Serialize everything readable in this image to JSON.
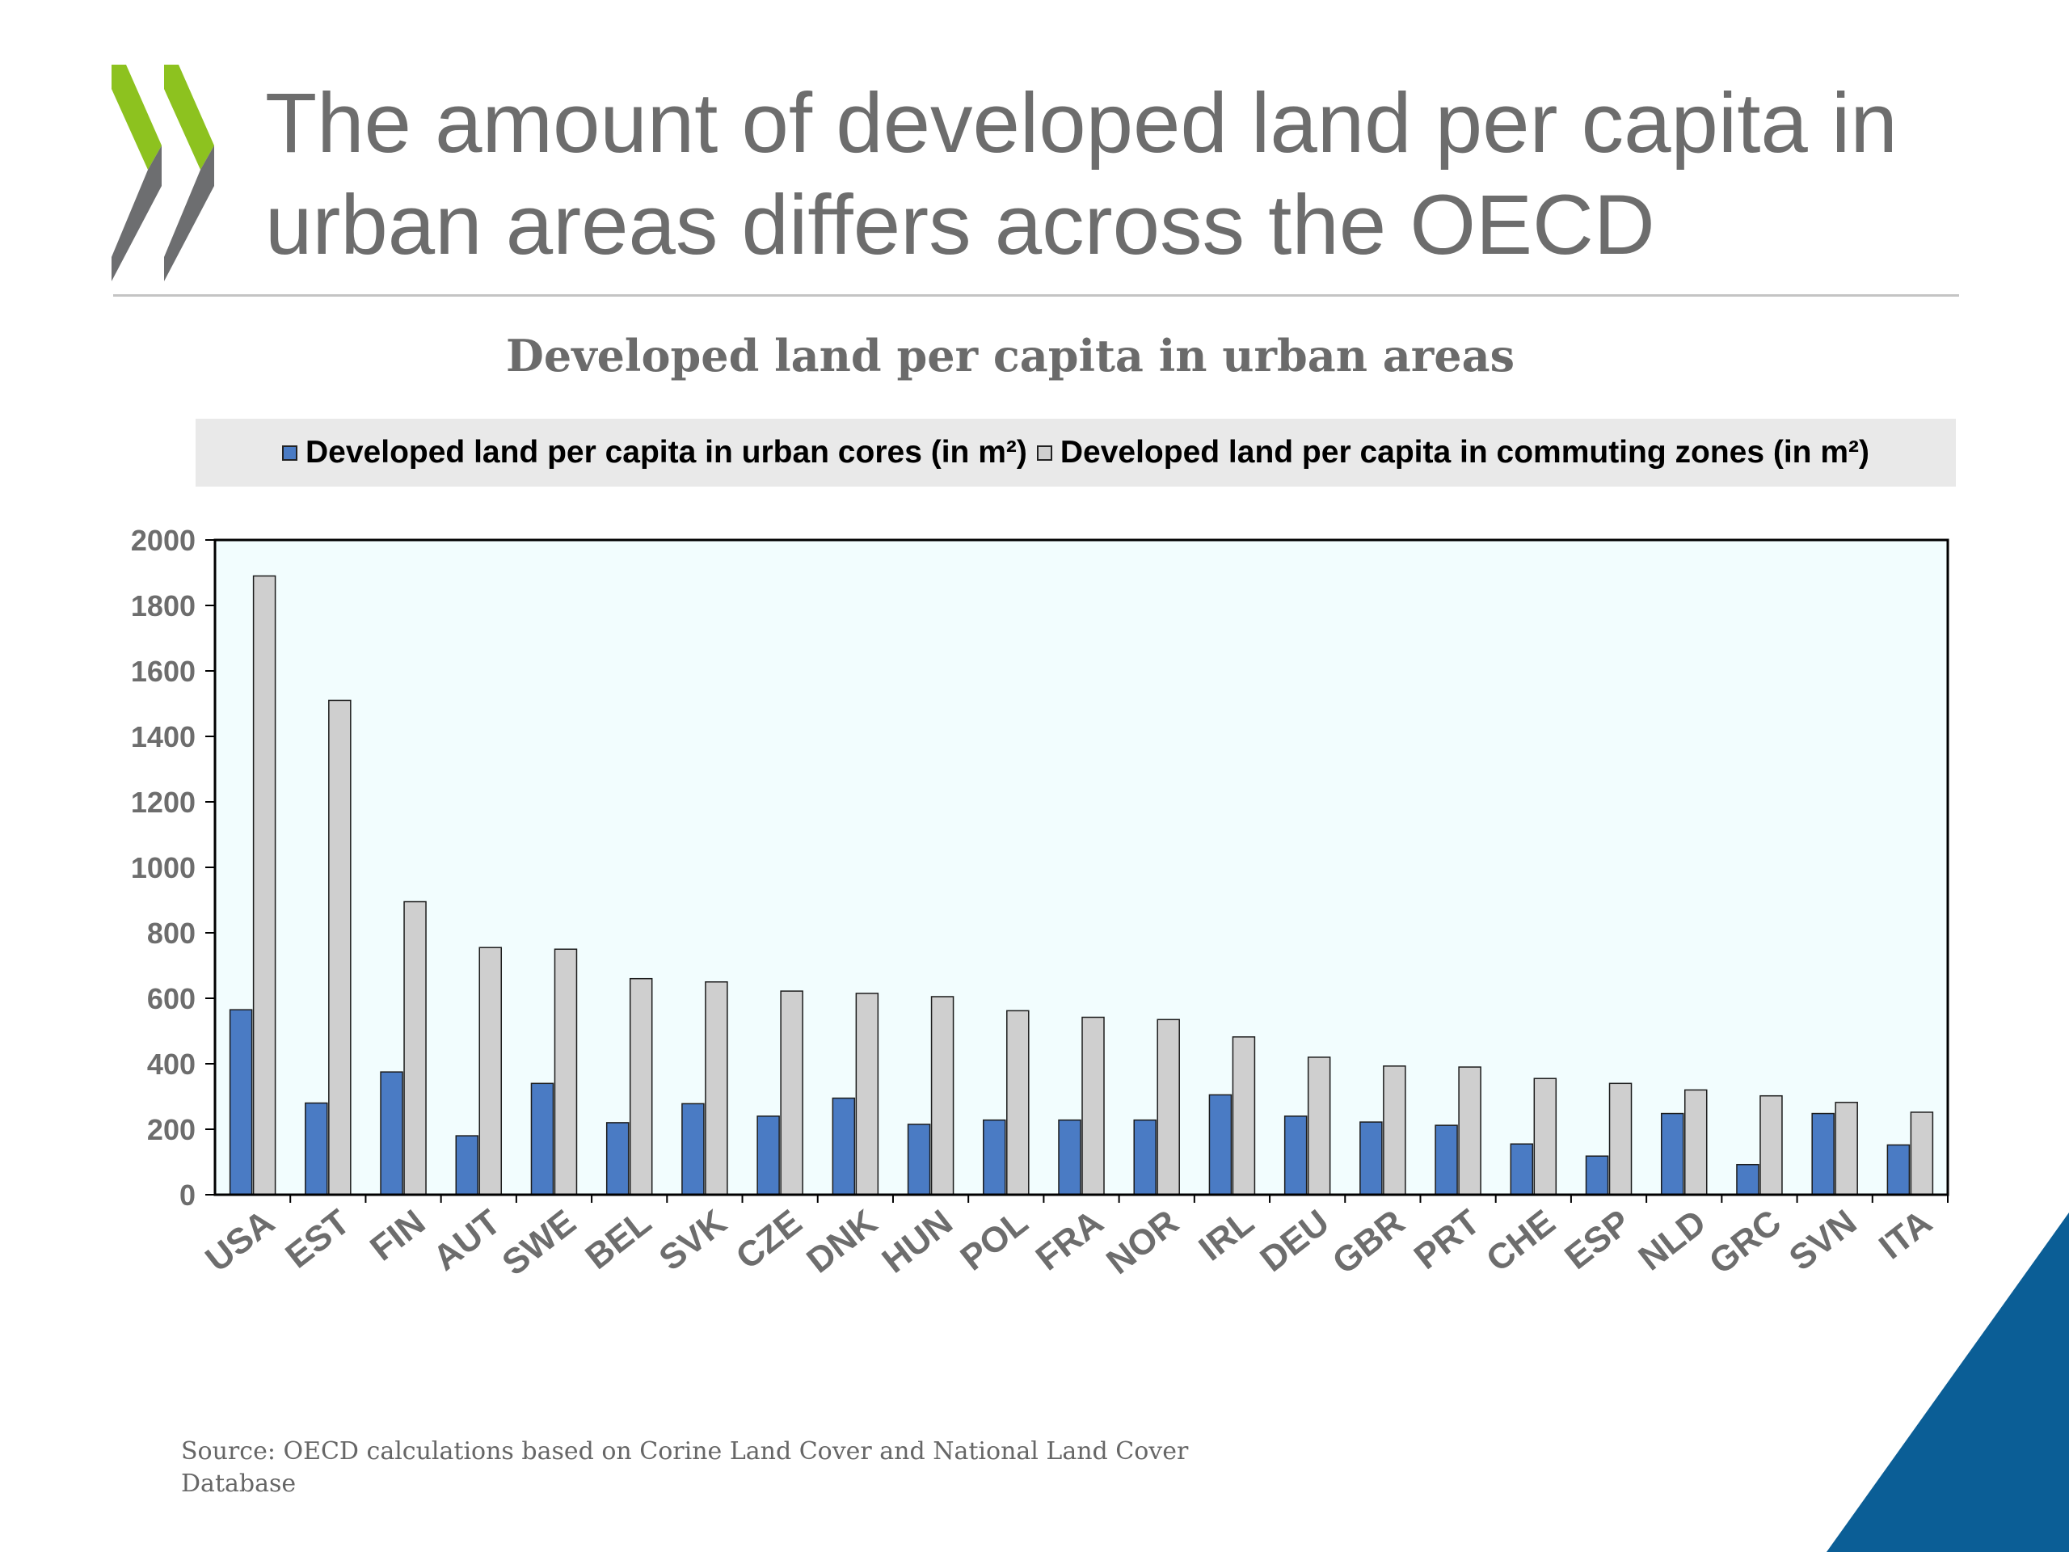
{
  "slide": {
    "title": "The amount of developed land per capita in urban areas differs across the OECD",
    "source": "Source: OECD calculations based on Corine Land Cover and National Land Cover Database"
  },
  "colors": {
    "logo_green": "#8dc21f",
    "logo_gray": "#6d6e70",
    "accent_blue": "#0b5e96",
    "series_urban": "#4a7bc4",
    "series_commuting": "#cfcfcf",
    "plot_background": "#f2fdfe"
  },
  "chart_data": {
    "type": "bar",
    "title": "Developed land per capita in urban areas",
    "xlabel": "",
    "ylabel": "",
    "ylim": [
      0,
      2000
    ],
    "yticks": [
      0,
      200,
      400,
      600,
      800,
      1000,
      1200,
      1400,
      1600,
      1800,
      2000
    ],
    "grid": false,
    "legend_position": "top",
    "categories": [
      "USA",
      "EST",
      "FIN",
      "AUT",
      "SWE",
      "BEL",
      "SVK",
      "CZE",
      "DNK",
      "HUN",
      "POL",
      "FRA",
      "NOR",
      "IRL",
      "DEU",
      "GBR",
      "PRT",
      "CHE",
      "ESP",
      "NLD",
      "GRC",
      "SVN",
      "ITA"
    ],
    "series": [
      {
        "name": "Developed land per capita in urban cores (in m²)",
        "color": "#4a7bc4",
        "values": [
          565,
          280,
          375,
          180,
          340,
          220,
          278,
          240,
          295,
          215,
          228,
          228,
          228,
          305,
          240,
          222,
          212,
          155,
          118,
          248,
          92,
          248,
          152
        ]
      },
      {
        "name": "Developed land per capita in commuting zones (in m²)",
        "color": "#cfcfcf",
        "values": [
          1890,
          1510,
          895,
          755,
          750,
          660,
          650,
          622,
          615,
          605,
          562,
          542,
          535,
          482,
          420,
          393,
          390,
          355,
          340,
          320,
          302,
          282,
          252
        ]
      }
    ]
  }
}
